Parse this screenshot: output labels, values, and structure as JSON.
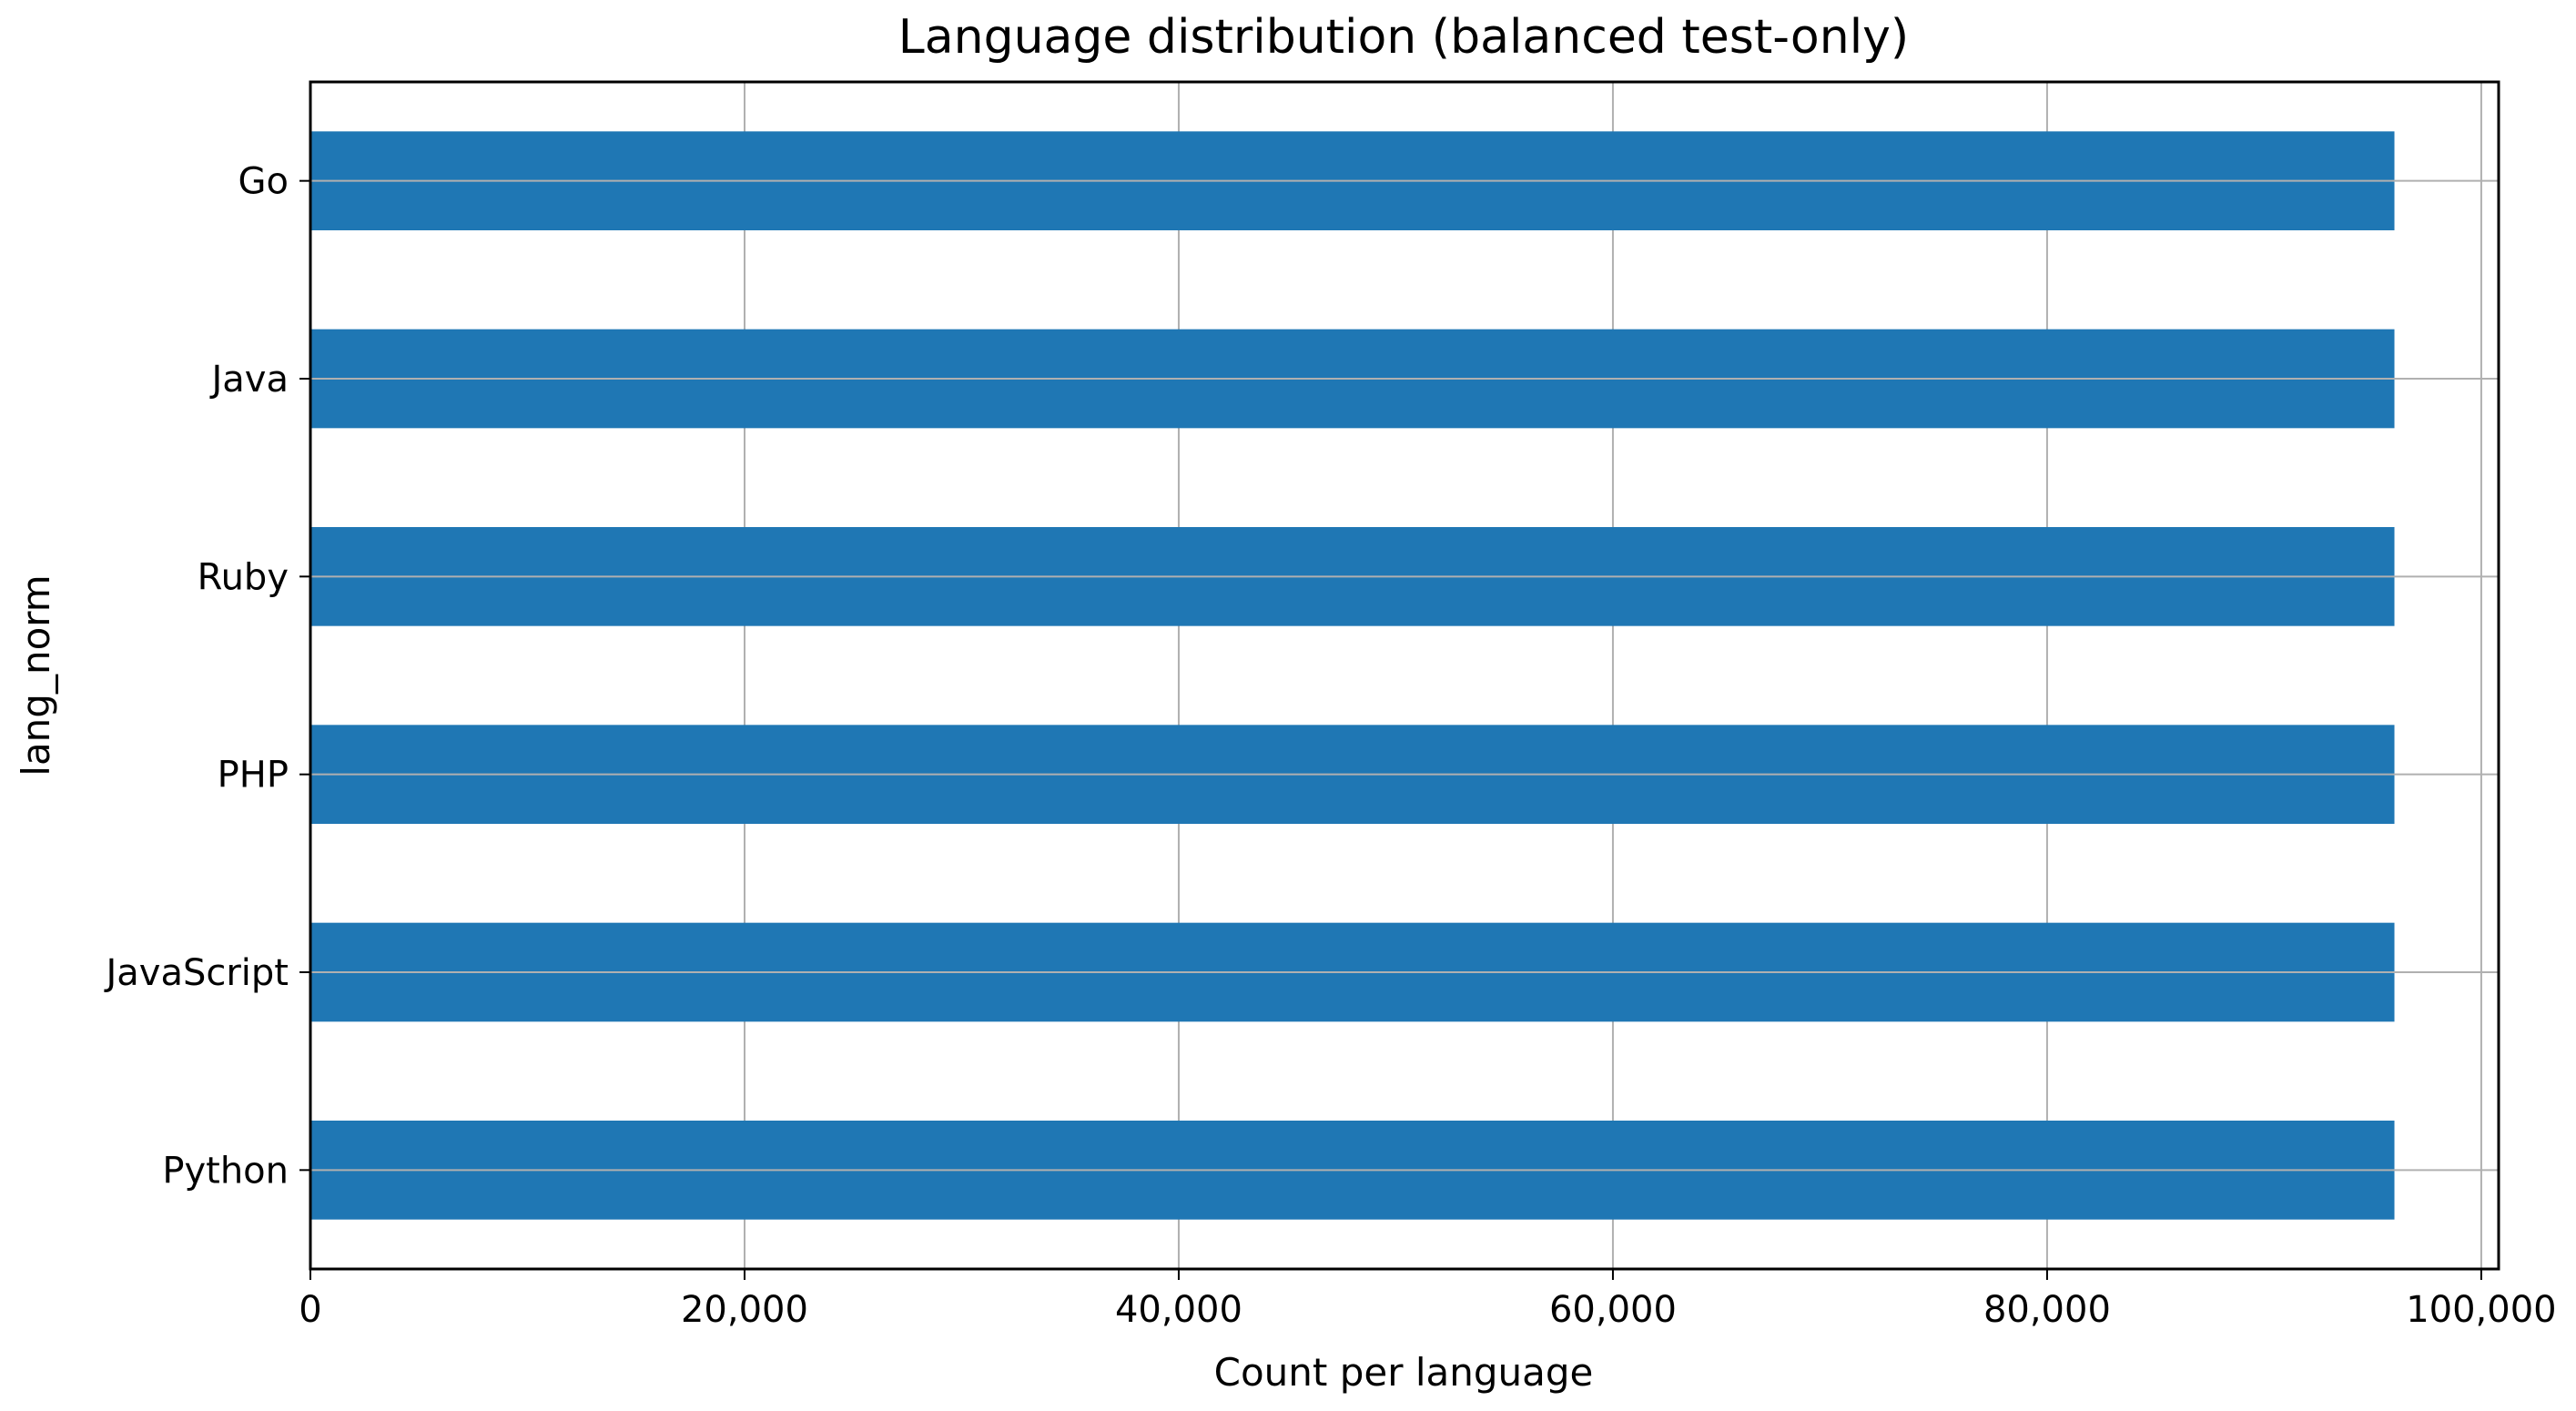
{
  "chart_data": {
    "type": "bar",
    "orientation": "horizontal",
    "title": "Language distribution (balanced test-only)",
    "xlabel": "Count per language",
    "ylabel": "lang_norm",
    "categories": [
      "Go",
      "Java",
      "Ruby",
      "PHP",
      "JavaScript",
      "Python"
    ],
    "series": [
      {
        "values": [
          96000,
          96000,
          96000,
          96000,
          96000,
          96000
        ]
      }
    ],
    "xlim": [
      0,
      100800
    ],
    "xticks": [
      0,
      20000,
      40000,
      60000,
      80000,
      100000
    ],
    "xtick_labels": [
      "0",
      "20,000",
      "40,000",
      "60,000",
      "80,000",
      "100,000"
    ],
    "grid": true,
    "legend": "none",
    "colors": {
      "bar": "#1f77b4",
      "grid": "#b0b0b0",
      "axis": "#000000"
    }
  }
}
